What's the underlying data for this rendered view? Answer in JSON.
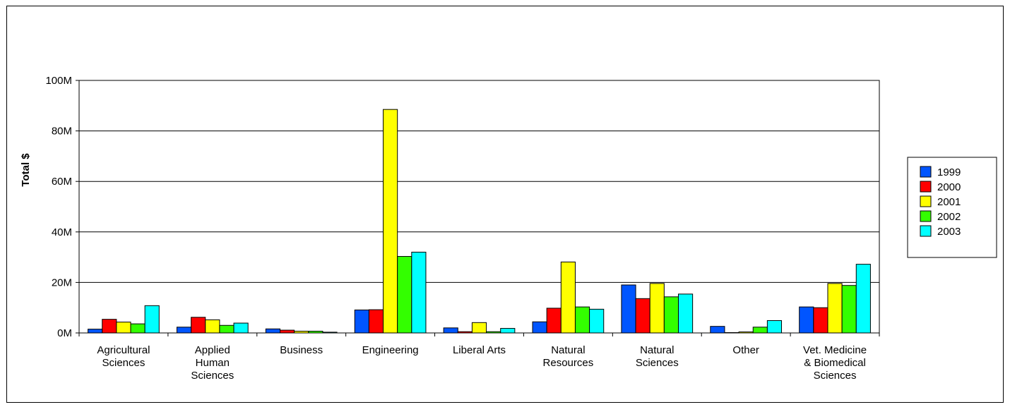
{
  "chart_data": {
    "type": "bar",
    "title": "",
    "xlabel": "",
    "ylabel": "Total $",
    "ylim": [
      0,
      100000000
    ],
    "yticks": [
      {
        "value": 0,
        "label": "0M"
      },
      {
        "value": 20000000,
        "label": "20M"
      },
      {
        "value": 40000000,
        "label": "40M"
      },
      {
        "value": 60000000,
        "label": "60M"
      },
      {
        "value": 80000000,
        "label": "80M"
      },
      {
        "value": 100000000,
        "label": "100M"
      }
    ],
    "grid": true,
    "legend_position": "right",
    "categories": [
      [
        "Agricultural",
        "Sciences"
      ],
      [
        "Applied",
        "Human",
        "Sciences"
      ],
      [
        "Business"
      ],
      [
        "Engineering"
      ],
      [
        "Liberal Arts"
      ],
      [
        "Natural",
        "Resources"
      ],
      [
        "Natural",
        "Sciences"
      ],
      [
        "Other"
      ],
      [
        "Vet. Medicine",
        "& Biomedical",
        "Sciences"
      ]
    ],
    "series": [
      {
        "name": "1999",
        "color": "#0055ff",
        "values": [
          1500000,
          2300000,
          1600000,
          9100000,
          2000000,
          4400000,
          19000000,
          2600000,
          10300000
        ]
      },
      {
        "name": "2000",
        "color": "#ff0000",
        "values": [
          5400000,
          6200000,
          1100000,
          9200000,
          500000,
          9800000,
          13600000,
          100000,
          10000000
        ]
      },
      {
        "name": "2001",
        "color": "#ffff00",
        "values": [
          4300000,
          5200000,
          700000,
          88500000,
          4100000,
          28100000,
          19600000,
          400000,
          19600000
        ]
      },
      {
        "name": "2002",
        "color": "#33ff00",
        "values": [
          3600000,
          3000000,
          700000,
          30300000,
          500000,
          10300000,
          14300000,
          2300000,
          18800000
        ]
      },
      {
        "name": "2003",
        "color": "#00ffff",
        "values": [
          10800000,
          3900000,
          300000,
          32000000,
          1800000,
          9400000,
          15400000,
          4900000,
          27200000
        ]
      }
    ]
  }
}
